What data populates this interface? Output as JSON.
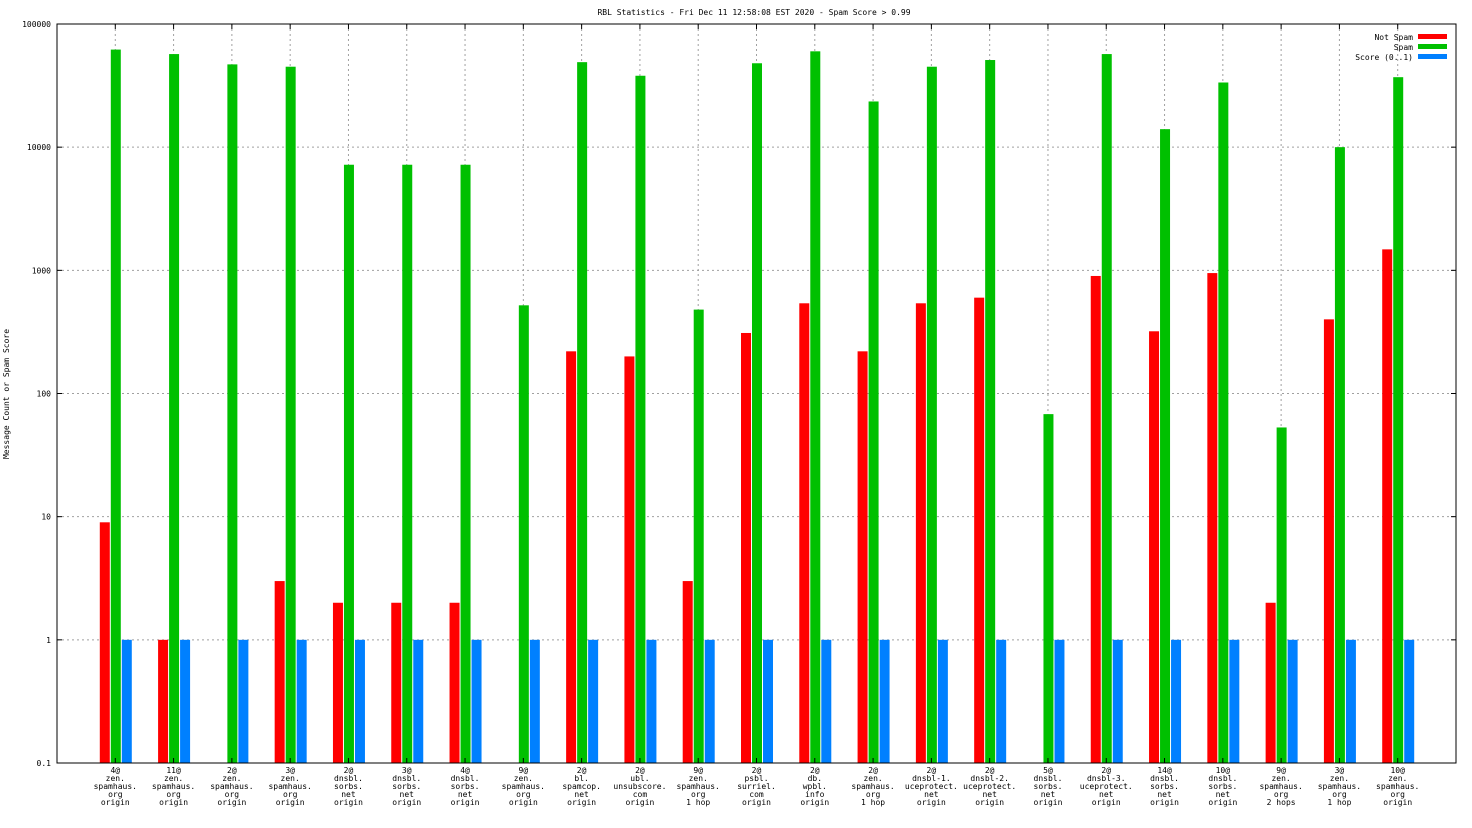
{
  "chart_data": {
    "type": "bar",
    "title": "RBL Statistics - Fri Dec 11 12:58:08 EST 2020 - Spam Score > 0.99",
    "ylabel": "Message Count or Spam Score",
    "xlabel": "",
    "yscale": "log",
    "ylim": [
      0.1,
      100000
    ],
    "yticks": [
      "0.1",
      "1",
      "10",
      "100",
      "1000",
      "10000",
      "100000"
    ],
    "grid": true,
    "legend_position": "top-right",
    "categories": [
      [
        "4@",
        "zen.",
        "spamhaus.",
        "org",
        "origin"
      ],
      [
        "11@",
        "zen.",
        "spamhaus.",
        "org",
        "origin"
      ],
      [
        "2@",
        "zen.",
        "spamhaus.",
        "org",
        "origin"
      ],
      [
        "3@",
        "zen.",
        "spamhaus.",
        "org",
        "origin"
      ],
      [
        "2@",
        "dnsbl.",
        "sorbs.",
        "net",
        "origin"
      ],
      [
        "3@",
        "dnsbl.",
        "sorbs.",
        "net",
        "origin"
      ],
      [
        "4@",
        "dnsbl.",
        "sorbs.",
        "net",
        "origin"
      ],
      [
        "9@",
        "zen.",
        "spamhaus.",
        "org",
        "origin"
      ],
      [
        "2@",
        "bl.",
        "spamcop.",
        "net",
        "origin"
      ],
      [
        "2@",
        "ubl.",
        "unsubscore.",
        "com",
        "origin"
      ],
      [
        "9@",
        "zen.",
        "spamhaus.",
        "org",
        "1 hop"
      ],
      [
        "2@",
        "psbl.",
        "surriel.",
        "com",
        "origin"
      ],
      [
        "2@",
        "db.",
        "wpbl.",
        "info",
        "origin"
      ],
      [
        "2@",
        "zen.",
        "spamhaus.",
        "org",
        "1 hop"
      ],
      [
        "2@",
        "dnsbl-1.",
        "uceprotect.",
        "net",
        "origin"
      ],
      [
        "2@",
        "dnsbl-2.",
        "uceprotect.",
        "net",
        "origin"
      ],
      [
        "5@",
        "dnsbl.",
        "sorbs.",
        "net",
        "origin"
      ],
      [
        "2@",
        "dnsbl-3.",
        "uceprotect.",
        "net",
        "origin"
      ],
      [
        "14@",
        "dnsbl.",
        "sorbs.",
        "net",
        "origin"
      ],
      [
        "10@",
        "dnsbl.",
        "sorbs.",
        "net",
        "origin"
      ],
      [
        "9@",
        "zen.",
        "spamhaus.",
        "org",
        "2 hops"
      ],
      [
        "3@",
        "zen.",
        "spamhaus.",
        "org",
        "1 hop"
      ],
      [
        "10@",
        "zen.",
        "spamhaus.",
        "org",
        "origin"
      ]
    ],
    "series": [
      {
        "name": "Not Spam",
        "color": "#ff0000",
        "values": [
          9,
          1,
          null,
          3,
          2,
          2,
          2,
          null,
          220,
          200,
          3,
          310,
          540,
          220,
          540,
          600,
          null,
          900,
          320,
          950,
          2,
          400,
          1480
        ]
      },
      {
        "name": "Spam",
        "color": "#00c000",
        "values": [
          62000,
          57000,
          47000,
          45000,
          7200,
          7200,
          7200,
          520,
          49000,
          38000,
          480,
          48000,
          60000,
          23500,
          45000,
          51000,
          68,
          57000,
          14000,
          33500,
          53,
          10000,
          37000
        ]
      },
      {
        "name": "Score (0..1)",
        "color": "#0080ff",
        "values": [
          1,
          1,
          1,
          1,
          1,
          1,
          1,
          1,
          1,
          1,
          1,
          1,
          1,
          1,
          1,
          1,
          1,
          1,
          1,
          1,
          1,
          1,
          1
        ]
      }
    ]
  }
}
